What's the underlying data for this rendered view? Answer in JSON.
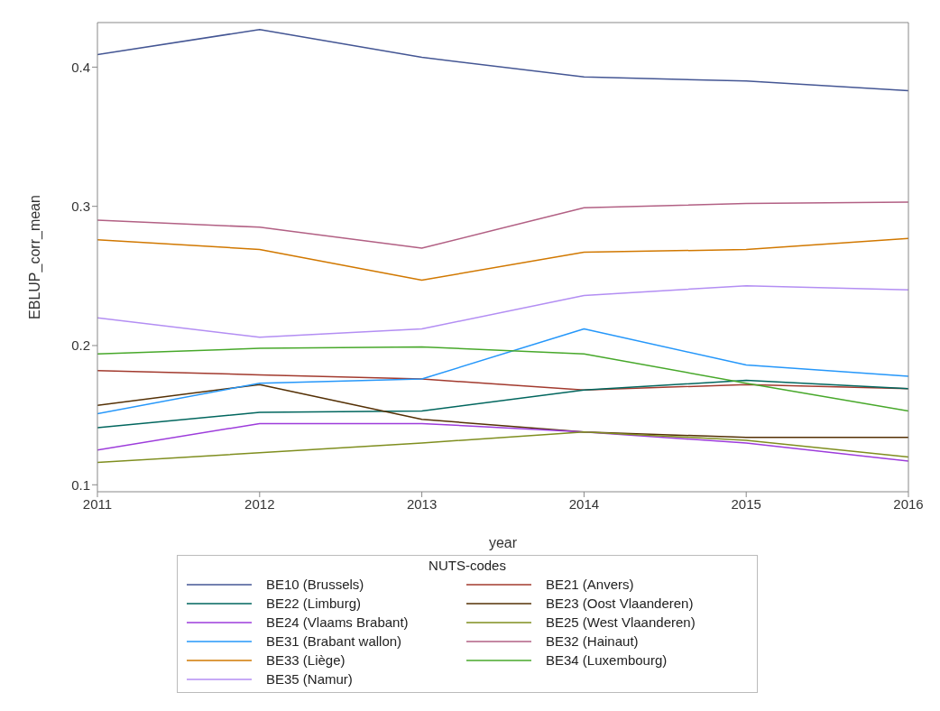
{
  "chart_data": {
    "type": "line",
    "xlabel": "year",
    "ylabel": "EBLUP_corr_mean",
    "legend_title": "NUTS-codes",
    "legend": "bottom",
    "grid": false,
    "marker": "none",
    "line_style": "solid",
    "x": [
      2011,
      2012,
      2013,
      2014,
      2015,
      2016
    ],
    "xlim": [
      2011,
      2016
    ],
    "xticks": [
      2011,
      2012,
      2013,
      2014,
      2015,
      2016
    ],
    "ylim": [
      0.095,
      0.432
    ],
    "yticks": [
      0.1,
      0.2,
      0.3,
      0.4
    ],
    "series": [
      {
        "name": "BE10 (Brussels)",
        "color": "#445694",
        "values": [
          0.409,
          0.427,
          0.407,
          0.393,
          0.39,
          0.383
        ]
      },
      {
        "name": "BE21 (Anvers)",
        "color": "#a23a2e",
        "values": [
          0.182,
          0.179,
          0.176,
          0.168,
          0.172,
          0.169
        ]
      },
      {
        "name": "BE22 (Limburg)",
        "color": "#01665e",
        "values": [
          0.141,
          0.152,
          0.153,
          0.168,
          0.175,
          0.169
        ]
      },
      {
        "name": "BE23 (Oost Vlaanderen)",
        "color": "#543005",
        "values": [
          0.157,
          0.172,
          0.147,
          0.138,
          0.134,
          0.134
        ]
      },
      {
        "name": "BE24 (Vlaams Brabant)",
        "color": "#9d3cdb",
        "values": [
          0.125,
          0.144,
          0.144,
          0.138,
          0.13,
          0.117
        ]
      },
      {
        "name": "BE25 (West Vlaanderen)",
        "color": "#7f8e1f",
        "values": [
          0.116,
          0.123,
          0.13,
          0.138,
          0.132,
          0.12
        ]
      },
      {
        "name": "BE31 (Brabant wallon)",
        "color": "#2597fa",
        "values": [
          0.151,
          0.173,
          0.176,
          0.212,
          0.186,
          0.178
        ]
      },
      {
        "name": "BE32 (Hainaut)",
        "color": "#b26084",
        "values": [
          0.29,
          0.285,
          0.27,
          0.299,
          0.302,
          0.303
        ]
      },
      {
        "name": "BE33 (Liège)",
        "color": "#d17800",
        "values": [
          0.276,
          0.269,
          0.247,
          0.267,
          0.269,
          0.277
        ]
      },
      {
        "name": "BE34 (Luxembourg)",
        "color": "#47a82a",
        "values": [
          0.194,
          0.198,
          0.199,
          0.194,
          0.173,
          0.153
        ]
      },
      {
        "name": "BE35 (Namur)",
        "color": "#b38ef3",
        "values": [
          0.22,
          0.206,
          0.212,
          0.236,
          0.243,
          0.24
        ]
      }
    ]
  }
}
